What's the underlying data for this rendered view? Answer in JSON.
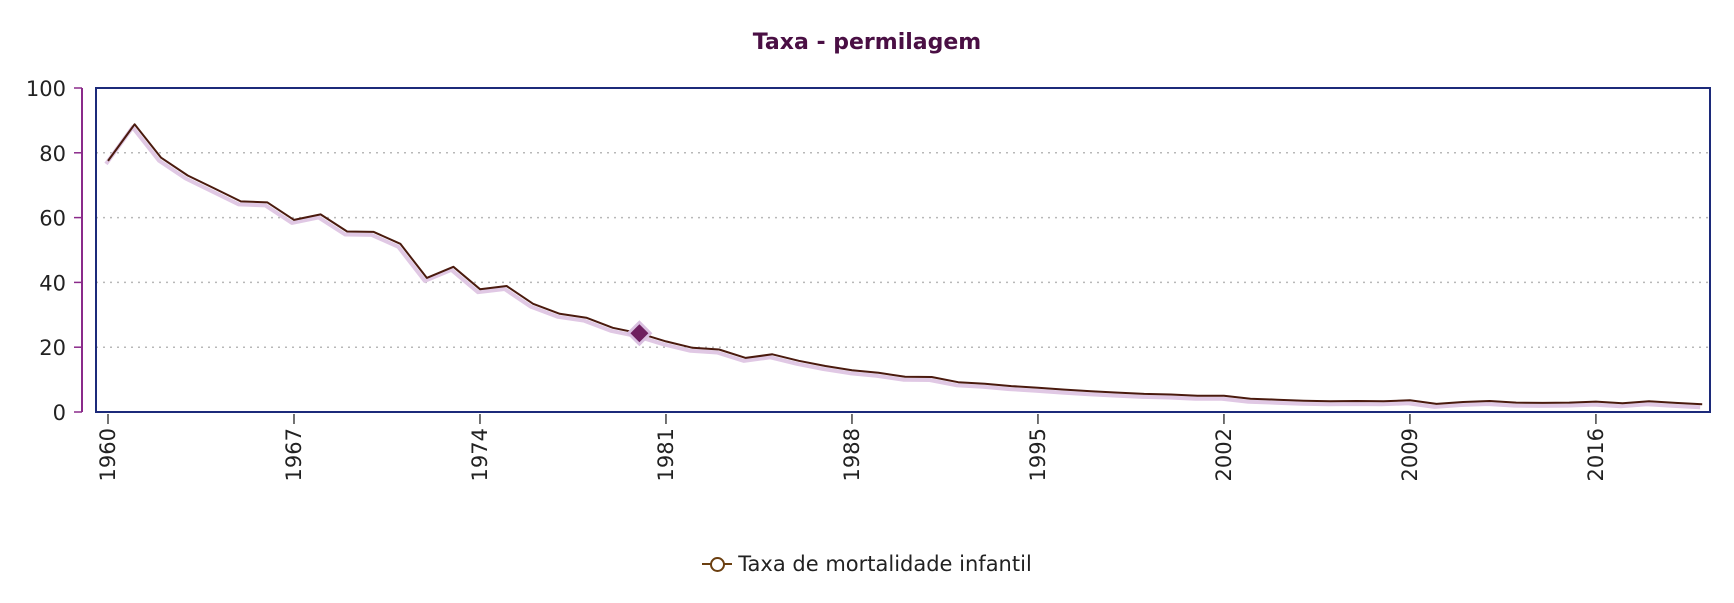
{
  "chart_data": {
    "type": "line",
    "title": "Taxa - permilagem",
    "xlabel": "",
    "ylabel": "",
    "ylim": [
      0,
      100
    ],
    "xlim": [
      1960,
      2020
    ],
    "yticks": [
      "0",
      "20",
      "40",
      "60",
      "80",
      "100"
    ],
    "xticks": [
      "1960",
      "1967",
      "1974",
      "1981",
      "1988",
      "1995",
      "2002",
      "2009",
      "2016"
    ],
    "grid": true,
    "legend_position": "bottom-center",
    "highlighted_point": {
      "x": 1980,
      "y": 24.3
    },
    "colors": {
      "line": "#4a1a0e",
      "shadow": "#e0c8e4",
      "highlight": "#6e1f5f",
      "highlight_outline": "#d9bfe0",
      "frame": "#1c2a7a",
      "y_axis": "#8a2a8a",
      "grid": "#b8b8b8",
      "title": "#4a0f44",
      "legend_marker": "#6b3f10"
    },
    "series": [
      {
        "name": "Taxa de mortalidade infantil",
        "x": [
          1960,
          1961,
          1962,
          1963,
          1964,
          1965,
          1966,
          1967,
          1968,
          1969,
          1970,
          1971,
          1972,
          1973,
          1974,
          1975,
          1976,
          1977,
          1978,
          1979,
          1980,
          1981,
          1982,
          1983,
          1984,
          1985,
          1986,
          1987,
          1988,
          1989,
          1990,
          1991,
          1992,
          1993,
          1994,
          1995,
          1996,
          1997,
          1998,
          1999,
          2000,
          2001,
          2002,
          2003,
          2004,
          2005,
          2006,
          2007,
          2008,
          2009,
          2010,
          2011,
          2012,
          2013,
          2014,
          2015,
          2016,
          2017,
          2018,
          2019,
          2020
        ],
        "values": [
          77.5,
          88.8,
          78.5,
          73.0,
          69.0,
          65.0,
          64.7,
          59.3,
          61.0,
          55.7,
          55.6,
          51.9,
          41.4,
          44.8,
          37.9,
          38.9,
          33.4,
          30.3,
          29.1,
          26.0,
          24.3,
          21.8,
          19.8,
          19.3,
          16.7,
          17.8,
          15.8,
          14.2,
          12.9,
          12.1,
          10.9,
          10.8,
          9.2,
          8.7,
          8.0,
          7.5,
          6.9,
          6.4,
          6.0,
          5.6,
          5.4,
          5.0,
          5.0,
          4.1,
          3.8,
          3.5,
          3.3,
          3.4,
          3.3,
          3.6,
          2.5,
          3.1,
          3.4,
          2.9,
          2.8,
          2.9,
          3.2,
          2.7,
          3.3,
          2.8,
          2.4
        ]
      }
    ]
  }
}
